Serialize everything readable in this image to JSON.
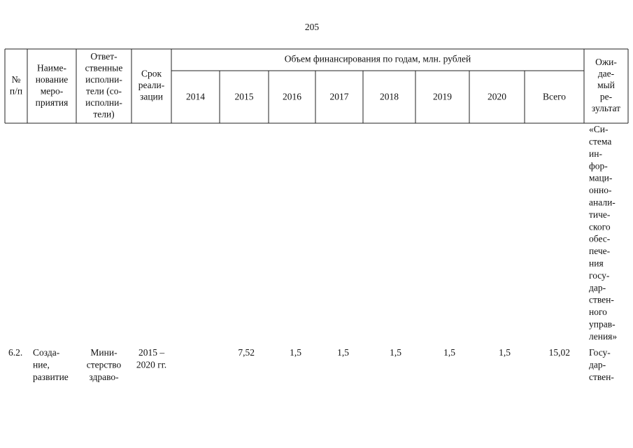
{
  "page_number": "205",
  "table": {
    "header": {
      "number": [
        "№",
        "п/п"
      ],
      "name": [
        "Наиме-",
        "нование",
        "меро-",
        "приятия"
      ],
      "executors": [
        "Ответ-",
        "ственные",
        "исполни-",
        "тели (со-",
        "исполни-",
        "тели)"
      ],
      "term": [
        "Срок",
        "реали-",
        "зации"
      ],
      "funding_title": "Объем финансирования по годам, млн. рублей",
      "years": [
        "2014",
        "2015",
        "2016",
        "2017",
        "2018",
        "2019",
        "2020",
        "Всего"
      ],
      "result": [
        "Ожи-",
        "дае-",
        "мый",
        "ре-",
        "зультат"
      ]
    },
    "rows": [
      {
        "result": [
          "«Си-",
          "стема",
          "ин-",
          "фор-",
          "маци-",
          "онно-",
          "анали-",
          "тиче-",
          "ского",
          "обес-",
          "пече-",
          "ния",
          "госу-",
          "дар-",
          "ствен-",
          "ного",
          "управ-",
          "ления»"
        ]
      },
      {
        "number": "6.2.",
        "name": [
          "Созда-",
          "ние,",
          "развитие"
        ],
        "executors": [
          "Мини-",
          "стерство",
          "здраво-"
        ],
        "term": [
          "2015 –",
          "2020 гг."
        ],
        "amounts": [
          "7,52",
          "1,5",
          "1,5",
          "1,5",
          "1,5",
          "1,5",
          "15,02"
        ],
        "result": [
          "Госу-",
          "дар-",
          "ствен-"
        ]
      }
    ]
  }
}
